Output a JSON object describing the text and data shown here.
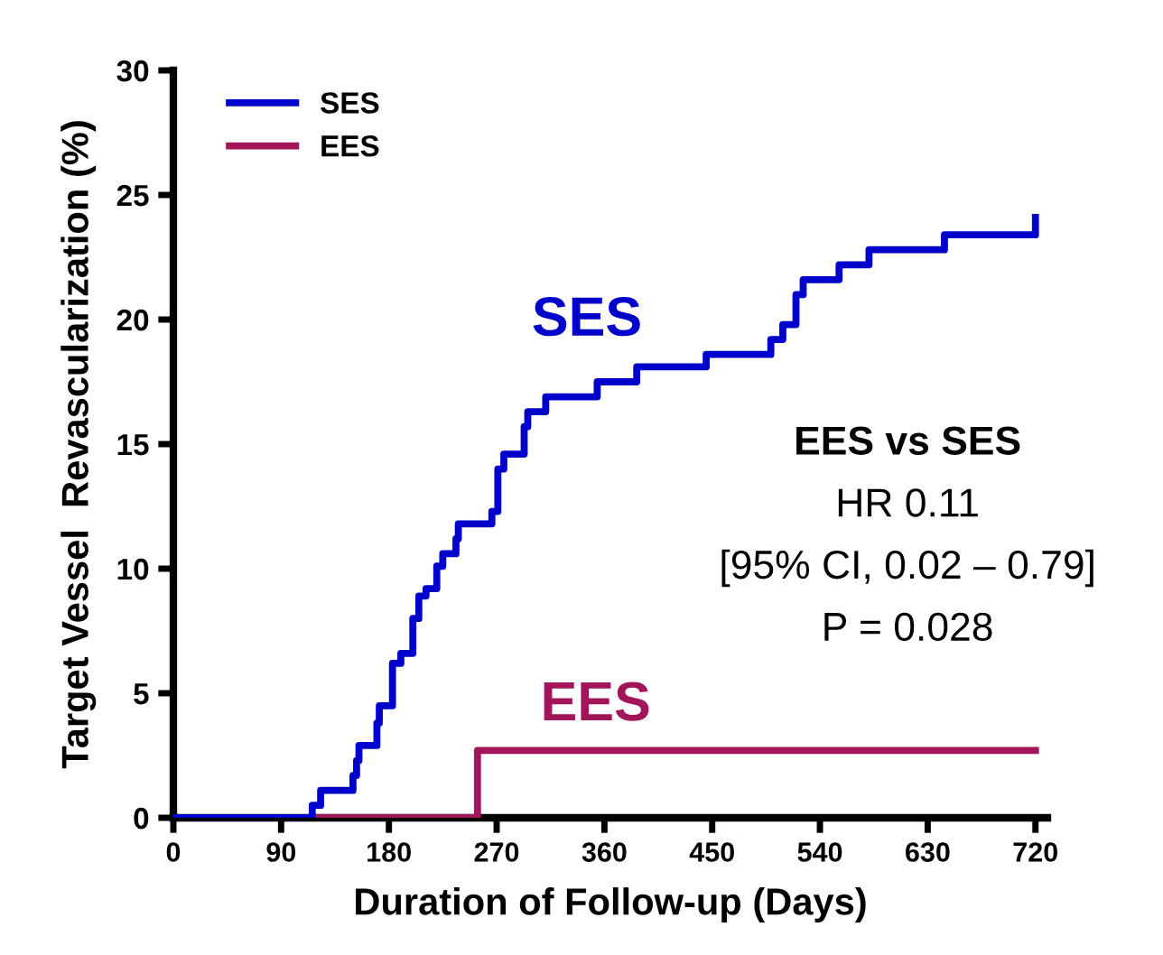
{
  "chart_data": {
    "type": "step",
    "xlabel": "Duration of Follow-up (Days)",
    "ylabel": "Target Vessel  Revascularization (%)",
    "xlim": [
      0,
      730
    ],
    "xticks": [
      0,
      90,
      180,
      270,
      360,
      450,
      540,
      630,
      720
    ],
    "ylim": [
      0,
      30
    ],
    "yticks": [
      0,
      5,
      10,
      15,
      20,
      25,
      30
    ],
    "grid": false,
    "legend": "top left",
    "marker": "none",
    "line_style": "solid",
    "series": [
      {
        "name": "SES",
        "color": "#0000cc",
        "x": [
          0,
          116,
          123,
          150,
          153,
          155,
          170,
          172,
          183,
          190,
          200,
          205,
          211,
          220,
          225,
          236,
          238,
          266,
          271,
          276,
          293,
          296,
          311,
          354,
          387,
          445,
          499,
          509,
          520,
          526,
          556,
          581,
          644,
          720
        ],
        "values": [
          0,
          0.5,
          1.1,
          1.7,
          2.3,
          2.9,
          3.8,
          4.5,
          6.2,
          6.6,
          8.0,
          8.9,
          9.2,
          10.1,
          10.6,
          11.2,
          11.8,
          12.3,
          14.0,
          14.6,
          15.7,
          16.3,
          16.9,
          17.5,
          18.1,
          18.6,
          19.2,
          19.8,
          21.0,
          21.6,
          22.2,
          22.8,
          23.4,
          24.1
        ]
      },
      {
        "name": "EES",
        "color": "#a3155a",
        "x": [
          0,
          254,
          720
        ],
        "values": [
          0,
          2.7,
          2.7
        ]
      }
    ],
    "annotations": [
      "EES vs SES",
      "HR 0.11",
      "[95% CI, 0.02 – 0.79]",
      "P = 0.028"
    ]
  }
}
